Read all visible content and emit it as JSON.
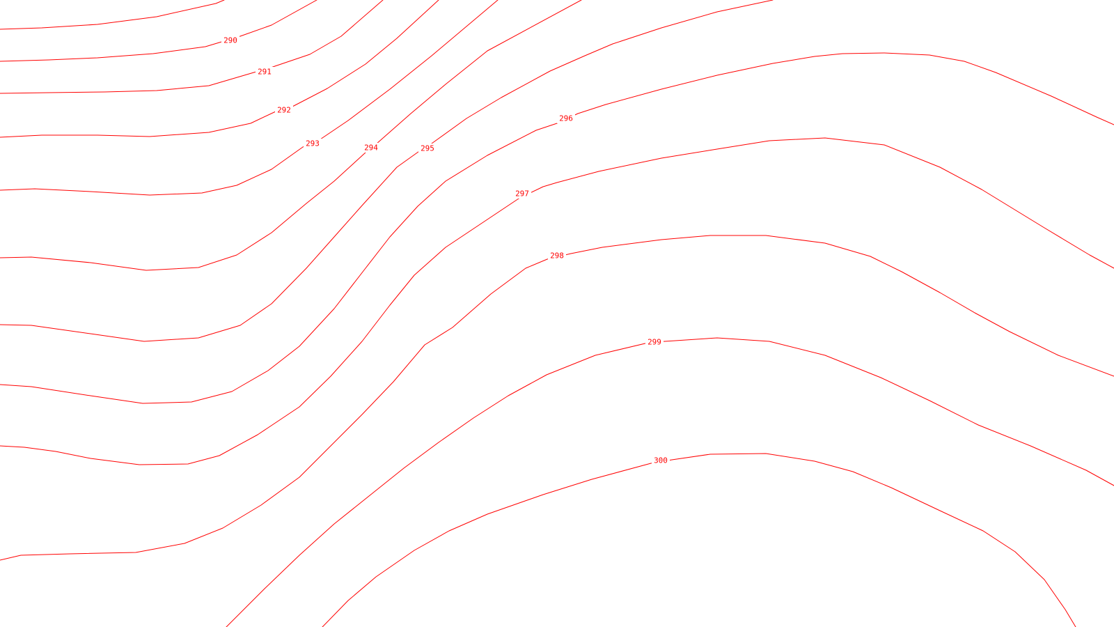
{
  "map": {
    "line_color": "#ff0000",
    "background_color": "#ffffff",
    "contours": [
      {
        "level": "290"
      },
      {
        "level": "291"
      },
      {
        "level": "292"
      },
      {
        "level": "293"
      },
      {
        "level": "294"
      },
      {
        "level": "295"
      },
      {
        "level": "296"
      },
      {
        "level": "297"
      },
      {
        "level": "298"
      },
      {
        "level": "299"
      },
      {
        "level": "300"
      }
    ]
  }
}
